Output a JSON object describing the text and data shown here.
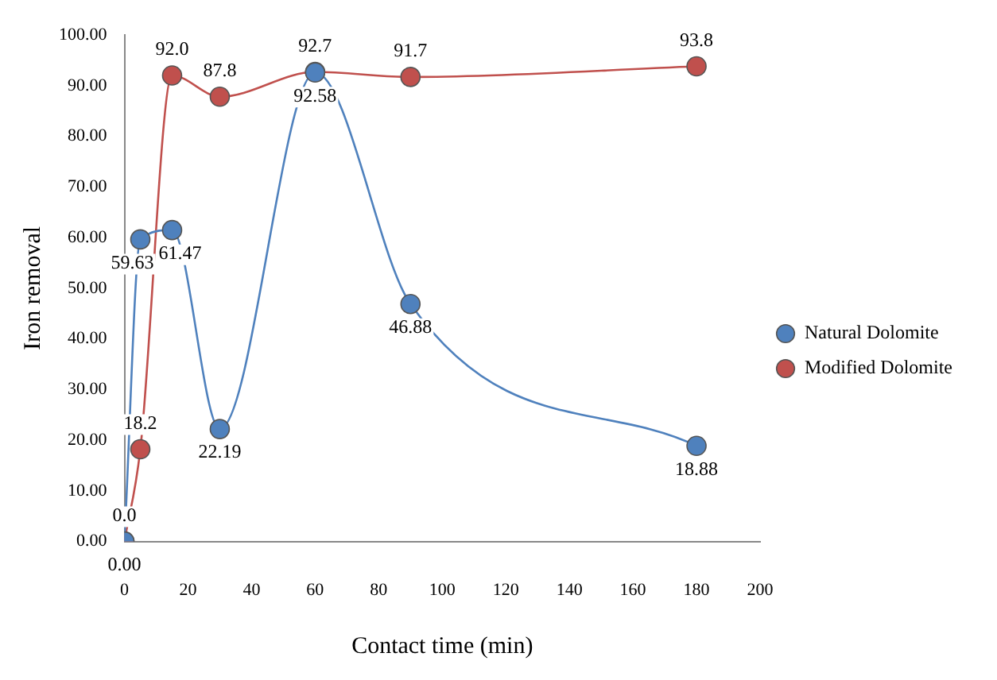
{
  "chart_data": {
    "type": "line",
    "xlabel": "Contact time (min)",
    "ylabel": "Iron removal",
    "xlim": [
      0,
      200
    ],
    "xticks": [
      0,
      20,
      40,
      60,
      80,
      100,
      120,
      140,
      160,
      180,
      200
    ],
    "ylim": [
      0,
      100
    ],
    "yticks": [
      {
        "value": 0,
        "label": "0.00"
      },
      {
        "value": 10,
        "label": "10.00"
      },
      {
        "value": 20,
        "label": "20.00"
      },
      {
        "value": 30,
        "label": "30.00"
      },
      {
        "value": 40,
        "label": "40.00"
      },
      {
        "value": 50,
        "label": "50.00"
      },
      {
        "value": 60,
        "label": "60.00"
      },
      {
        "value": 70,
        "label": "70.00"
      },
      {
        "value": 80,
        "label": "80.00"
      },
      {
        "value": 90,
        "label": "90.00"
      },
      {
        "value": 100,
        "label": "100.00"
      }
    ],
    "x": [
      0,
      5,
      15,
      30,
      60,
      90,
      180
    ],
    "series": [
      {
        "name": "Natural Dolomite",
        "color": "#4f81bd",
        "values": [
          0,
          59.63,
          61.47,
          22.19,
          92.58,
          46.88,
          18.88
        ],
        "value_labels": [
          "0.00",
          "59.63",
          "61.47",
          "22.19",
          "92.58",
          "46.88",
          "18.88"
        ]
      },
      {
        "name": "Modified Dolomite",
        "color": "#c0504d",
        "values": [
          0,
          18.2,
          92.0,
          87.8,
          92.7,
          91.7,
          93.8
        ],
        "value_labels": [
          "0.0",
          "18.2",
          "92.0",
          "87.8",
          "92.7",
          "91.7",
          "93.8"
        ]
      }
    ],
    "marker": "circle",
    "line_style": "solid",
    "legend": "right",
    "grid": false
  }
}
